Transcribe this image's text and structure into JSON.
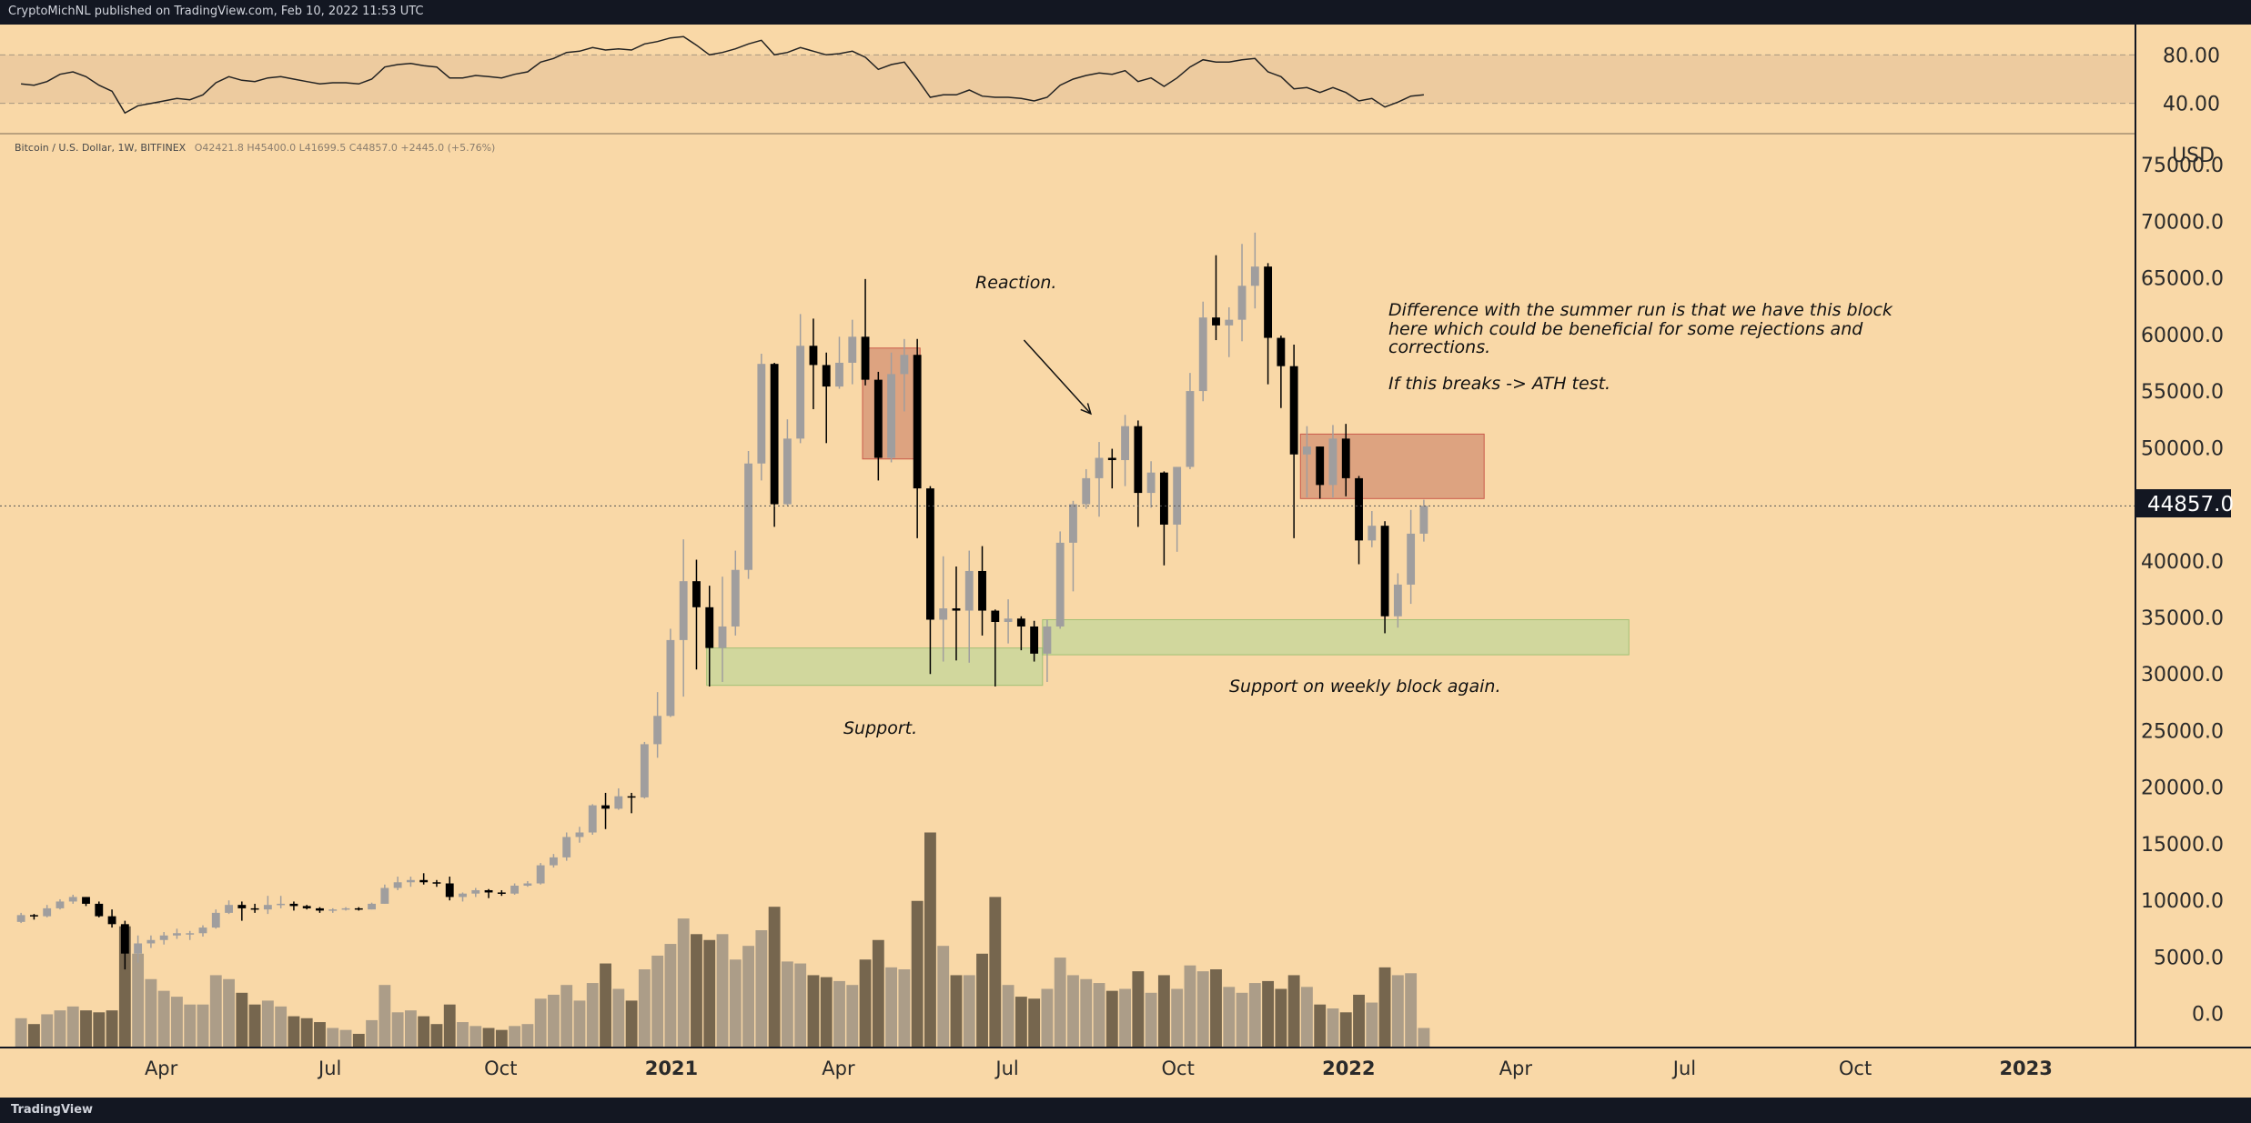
{
  "header": {
    "publish_line": "CryptoMichNL published on TradingView.com, Feb 10, 2022 11:53 UTC"
  },
  "footer": {
    "brand": "TradingView"
  },
  "colors": {
    "background": "#f9d8a7",
    "frame": "#131722",
    "bear": "#000000",
    "bull": "#a09e9e",
    "resistance_box": "#d99a7a",
    "support_box": "#c8d79b"
  },
  "legend": {
    "symbol": "Bitcoin / U.S. Dollar, 1W, BITFINEX",
    "ohlc": "O42421.8 H45400.0 L41699.5 C44857.0 +2445.0 (+5.76%)"
  },
  "price_axis": {
    "currency": "USD",
    "last_price_label": "44857.0"
  },
  "rsi_axis": {
    "labels": [
      "80.00",
      "40.00"
    ]
  },
  "time_axis": [
    {
      "label": "Apr",
      "date": "2020-04-01",
      "bold": false
    },
    {
      "label": "Jul",
      "date": "2020-07-01",
      "bold": false
    },
    {
      "label": "Oct",
      "date": "2020-10-01",
      "bold": false
    },
    {
      "label": "2021",
      "date": "2021-01-01",
      "bold": true
    },
    {
      "label": "Apr",
      "date": "2021-04-01",
      "bold": false
    },
    {
      "label": "Jul",
      "date": "2021-07-01",
      "bold": false
    },
    {
      "label": "Oct",
      "date": "2021-10-01",
      "bold": false
    },
    {
      "label": "2022",
      "date": "2022-01-01",
      "bold": true
    },
    {
      "label": "Apr",
      "date": "2022-04-01",
      "bold": false
    },
    {
      "label": "Jul",
      "date": "2022-07-01",
      "bold": false
    },
    {
      "label": "Oct",
      "date": "2022-10-01",
      "bold": false
    },
    {
      "label": "2023",
      "date": "2023-01-01",
      "bold": true
    }
  ],
  "annotations": {
    "reaction": "Reaction.",
    "support_left": "Support.",
    "support_right": "Support on weekly block again.",
    "note_lines": [
      "Difference with the summer run is that we have this block",
      "here which could be beneficial for some rejections and",
      "corrections.",
      "",
      "If this breaks -> ATH test."
    ]
  },
  "chart_data": {
    "type": "candlestick",
    "timeframe": "1W",
    "x_range": [
      "2020-01-13",
      "2023-03-01"
    ],
    "price_ylim": [
      -3000,
      77500
    ],
    "price_ticks": [
      0,
      5000,
      10000,
      15000,
      20000,
      25000,
      30000,
      35000,
      40000,
      45000,
      50000,
      55000,
      60000,
      65000,
      70000,
      75000
    ],
    "last_price": 44857.0,
    "rsi_ylim": [
      15,
      105
    ],
    "rsi_ticks": [
      80,
      40
    ],
    "rsi_band": [
      40,
      80
    ],
    "boxes": [
      {
        "type": "resistance",
        "x0": "2021-04-14",
        "x1": "2021-05-15",
        "y0": 49000,
        "y1": 58800
      },
      {
        "type": "resistance",
        "x0": "2021-12-06",
        "x1": "2022-03-15",
        "y0": 45500,
        "y1": 51200
      },
      {
        "type": "support",
        "x0": "2021-01-20",
        "x1": "2021-07-20",
        "y0": 29000,
        "y1": 32300
      },
      {
        "type": "support",
        "x0": "2021-07-20",
        "x1": "2022-06-01",
        "y0": 31700,
        "y1": 34800
      }
    ],
    "arrow": {
      "from": [
        "2021-07-10",
        59500
      ],
      "to": [
        "2021-08-15",
        53000
      ]
    },
    "weeks": [
      [
        "2020-01-13",
        8100,
        8900,
        8000,
        8700,
        1500,
        56
      ],
      [
        "2020-01-20",
        8700,
        8800,
        8300,
        8600,
        1200,
        55
      ],
      [
        "2020-01-27",
        8600,
        9600,
        8500,
        9300,
        1700,
        58
      ],
      [
        "2020-02-03",
        9300,
        10100,
        9200,
        9900,
        1900,
        64
      ],
      [
        "2020-02-10",
        9900,
        10500,
        9700,
        10300,
        2100,
        66
      ],
      [
        "2020-02-17",
        10300,
        10300,
        9500,
        9700,
        1900,
        62
      ],
      [
        "2020-02-24",
        9700,
        9900,
        8500,
        8600,
        1800,
        55
      ],
      [
        "2020-03-02",
        8600,
        9200,
        7600,
        7900,
        1900,
        50
      ],
      [
        "2020-03-09",
        7900,
        8200,
        3900,
        5300,
        6200,
        32
      ],
      [
        "2020-03-16",
        5300,
        6900,
        4500,
        6200,
        4800,
        38
      ],
      [
        "2020-03-23",
        6200,
        6900,
        5800,
        6500,
        3500,
        40
      ],
      [
        "2020-03-30",
        6500,
        7200,
        6100,
        6900,
        2900,
        42
      ],
      [
        "2020-04-06",
        6900,
        7500,
        6600,
        7100,
        2600,
        44
      ],
      [
        "2020-04-13",
        7100,
        7300,
        6500,
        7100,
        2200,
        43
      ],
      [
        "2020-04-20",
        7100,
        7800,
        6800,
        7600,
        2200,
        47
      ],
      [
        "2020-04-27",
        7600,
        9200,
        7500,
        8900,
        3700,
        57
      ],
      [
        "2020-05-04",
        8900,
        10000,
        8800,
        9600,
        3500,
        62
      ],
      [
        "2020-05-11",
        9600,
        9900,
        8200,
        9300,
        2800,
        59
      ],
      [
        "2020-05-18",
        9300,
        9700,
        8900,
        9200,
        2200,
        58
      ],
      [
        "2020-05-25",
        9200,
        10400,
        8800,
        9600,
        2400,
        61
      ],
      [
        "2020-06-01",
        9600,
        10400,
        9300,
        9700,
        2100,
        62
      ],
      [
        "2020-06-08",
        9700,
        9900,
        9100,
        9500,
        1600,
        60
      ],
      [
        "2020-06-15",
        9500,
        9600,
        9200,
        9300,
        1500,
        58
      ],
      [
        "2020-06-22",
        9300,
        9400,
        8900,
        9100,
        1300,
        56
      ],
      [
        "2020-06-29",
        9100,
        9300,
        8900,
        9200,
        1000,
        57
      ],
      [
        "2020-07-06",
        9200,
        9400,
        9100,
        9300,
        900,
        57
      ],
      [
        "2020-07-13",
        9300,
        9400,
        9100,
        9200,
        700,
        56
      ],
      [
        "2020-07-20",
        9200,
        9800,
        9200,
        9700,
        1400,
        60
      ],
      [
        "2020-07-27",
        9700,
        11400,
        9700,
        11100,
        3200,
        70
      ],
      [
        "2020-08-03",
        11100,
        12100,
        10900,
        11600,
        1800,
        72
      ],
      [
        "2020-08-10",
        11600,
        12100,
        11200,
        11800,
        1900,
        73
      ],
      [
        "2020-08-17",
        11800,
        12400,
        11400,
        11600,
        1600,
        71
      ],
      [
        "2020-08-24",
        11600,
        11800,
        11200,
        11500,
        1200,
        70
      ],
      [
        "2020-08-31",
        11500,
        12100,
        10000,
        10300,
        2200,
        61
      ],
      [
        "2020-09-07",
        10300,
        10700,
        9900,
        10600,
        1300,
        61
      ],
      [
        "2020-09-14",
        10600,
        11100,
        10300,
        10900,
        1100,
        63
      ],
      [
        "2020-09-21",
        10900,
        11000,
        10200,
        10700,
        1000,
        62
      ],
      [
        "2020-09-28",
        10700,
        10900,
        10400,
        10600,
        900,
        61
      ],
      [
        "2020-10-05",
        10600,
        11500,
        10500,
        11300,
        1100,
        64
      ],
      [
        "2020-10-12",
        11300,
        11700,
        11200,
        11500,
        1200,
        66
      ],
      [
        "2020-10-19",
        11500,
        13300,
        11400,
        13100,
        2500,
        74
      ],
      [
        "2020-10-26",
        13100,
        14100,
        12900,
        13800,
        2700,
        77
      ],
      [
        "2020-11-02",
        13800,
        16000,
        13500,
        15600,
        3200,
        82
      ],
      [
        "2020-11-09",
        15600,
        16500,
        15100,
        16000,
        2400,
        83
      ],
      [
        "2020-11-16",
        16000,
        18500,
        15800,
        18400,
        3300,
        86
      ],
      [
        "2020-11-23",
        18400,
        19500,
        16300,
        18100,
        4300,
        84
      ],
      [
        "2020-11-30",
        18100,
        19900,
        18000,
        19200,
        3000,
        85
      ],
      [
        "2020-12-07",
        19200,
        19500,
        17700,
        19100,
        2400,
        84
      ],
      [
        "2020-12-14",
        19100,
        24000,
        19000,
        23800,
        4000,
        89
      ],
      [
        "2020-12-21",
        23800,
        28400,
        22600,
        26300,
        4700,
        91
      ],
      [
        "2020-12-28",
        26300,
        34000,
        26200,
        33000,
        5300,
        94
      ],
      [
        "2021-01-04",
        33000,
        41900,
        28000,
        38200,
        6600,
        95
      ],
      [
        "2021-01-11",
        38200,
        40100,
        30400,
        35900,
        5800,
        88
      ],
      [
        "2021-01-18",
        35900,
        37800,
        28900,
        32300,
        5500,
        80
      ],
      [
        "2021-01-25",
        32300,
        38600,
        29300,
        34200,
        5800,
        82
      ],
      [
        "2021-02-01",
        34200,
        40900,
        33400,
        39200,
        4500,
        85
      ],
      [
        "2021-02-08",
        39200,
        49700,
        38400,
        48600,
        5200,
        89
      ],
      [
        "2021-02-15",
        48600,
        58300,
        47100,
        57400,
        6000,
        92
      ],
      [
        "2021-02-22",
        57400,
        57500,
        43000,
        45000,
        7200,
        80
      ],
      [
        "2021-03-01",
        45000,
        52500,
        44900,
        50800,
        4400,
        82
      ],
      [
        "2021-03-08",
        50800,
        61800,
        50400,
        59000,
        4300,
        86
      ],
      [
        "2021-03-15",
        59000,
        61400,
        53400,
        57300,
        3700,
        83
      ],
      [
        "2021-03-22",
        57300,
        58400,
        50400,
        55400,
        3600,
        80
      ],
      [
        "2021-03-29",
        55400,
        59800,
        55200,
        57500,
        3400,
        81
      ],
      [
        "2021-04-05",
        57500,
        61300,
        55600,
        59800,
        3200,
        83
      ],
      [
        "2021-04-12",
        59800,
        64900,
        55500,
        56000,
        4500,
        78
      ],
      [
        "2021-04-19",
        56000,
        56700,
        47100,
        49100,
        5500,
        68
      ],
      [
        "2021-04-26",
        49100,
        58400,
        48700,
        56500,
        4100,
        72
      ],
      [
        "2021-05-03",
        56500,
        59600,
        53200,
        58200,
        4000,
        74
      ],
      [
        "2021-05-10",
        58200,
        59600,
        42000,
        46400,
        7500,
        60
      ],
      [
        "2021-05-17",
        46400,
        46600,
        30000,
        34800,
        11000,
        45
      ],
      [
        "2021-05-24",
        34800,
        40400,
        31100,
        35800,
        5200,
        47
      ],
      [
        "2021-05-31",
        35800,
        39500,
        31200,
        35600,
        3700,
        47
      ],
      [
        "2021-06-07",
        35600,
        40900,
        31000,
        39100,
        3700,
        51
      ],
      [
        "2021-06-14",
        39100,
        41300,
        33400,
        35600,
        4800,
        46
      ],
      [
        "2021-06-21",
        35600,
        35700,
        28900,
        34600,
        7700,
        45
      ],
      [
        "2021-06-28",
        34600,
        36600,
        32700,
        34900,
        3200,
        45
      ],
      [
        "2021-07-05",
        34900,
        35100,
        32100,
        34200,
        2600,
        44
      ],
      [
        "2021-07-12",
        34200,
        34700,
        31100,
        31800,
        2500,
        42
      ],
      [
        "2021-07-19",
        31800,
        34800,
        29300,
        34200,
        3000,
        45
      ],
      [
        "2021-07-26",
        34200,
        42600,
        34000,
        41600,
        4600,
        55
      ],
      [
        "2021-08-02",
        41600,
        45300,
        37300,
        45000,
        3700,
        60
      ],
      [
        "2021-08-09",
        45000,
        48100,
        44600,
        47300,
        3500,
        63
      ],
      [
        "2021-08-16",
        47300,
        50500,
        43900,
        49100,
        3300,
        65
      ],
      [
        "2021-08-23",
        49100,
        49900,
        46400,
        48900,
        2900,
        64
      ],
      [
        "2021-08-30",
        48900,
        52900,
        46600,
        51900,
        3000,
        67
      ],
      [
        "2021-09-06",
        51900,
        52400,
        43000,
        46000,
        3900,
        58
      ],
      [
        "2021-09-13",
        46000,
        48800,
        44700,
        47800,
        2800,
        61
      ],
      [
        "2021-09-20",
        47800,
        47900,
        39600,
        43200,
        3700,
        54
      ],
      [
        "2021-09-27",
        43200,
        48300,
        40800,
        48300,
        3000,
        61
      ],
      [
        "2021-10-04",
        48300,
        56600,
        48100,
        55000,
        4200,
        70
      ],
      [
        "2021-10-11",
        55000,
        62900,
        54100,
        61500,
        3900,
        76
      ],
      [
        "2021-10-18",
        61500,
        67000,
        59500,
        60800,
        4000,
        74
      ],
      [
        "2021-10-25",
        60800,
        62400,
        58000,
        61300,
        3100,
        74
      ],
      [
        "2021-11-01",
        61300,
        68000,
        59400,
        64300,
        2800,
        76
      ],
      [
        "2021-11-08",
        64300,
        69000,
        62300,
        66000,
        3300,
        77
      ],
      [
        "2021-11-15",
        66000,
        66300,
        55600,
        59700,
        3400,
        66
      ],
      [
        "2021-11-22",
        59700,
        59900,
        53500,
        57200,
        3000,
        62
      ],
      [
        "2021-11-29",
        57200,
        59100,
        42000,
        49400,
        3700,
        52
      ],
      [
        "2021-12-06",
        49400,
        51900,
        45600,
        50100,
        3100,
        53
      ],
      [
        "2021-12-13",
        50100,
        50100,
        45500,
        46700,
        2200,
        49
      ],
      [
        "2021-12-20",
        46700,
        52000,
        45600,
        50800,
        2000,
        53
      ],
      [
        "2021-12-27",
        50800,
        52100,
        45700,
        47300,
        1800,
        49
      ],
      [
        "2022-01-03",
        47300,
        47500,
        39700,
        41800,
        2700,
        42
      ],
      [
        "2022-01-10",
        41800,
        44400,
        41200,
        43100,
        2300,
        44
      ],
      [
        "2022-01-17",
        43100,
        43500,
        33600,
        35100,
        4100,
        37
      ],
      [
        "2022-01-24",
        35100,
        38900,
        34100,
        37900,
        3700,
        41
      ],
      [
        "2022-01-31",
        37900,
        44500,
        36200,
        42400,
        3800,
        46
      ],
      [
        "2022-02-07",
        42400,
        45400,
        41700,
        44857,
        1000,
        47
      ]
    ]
  }
}
